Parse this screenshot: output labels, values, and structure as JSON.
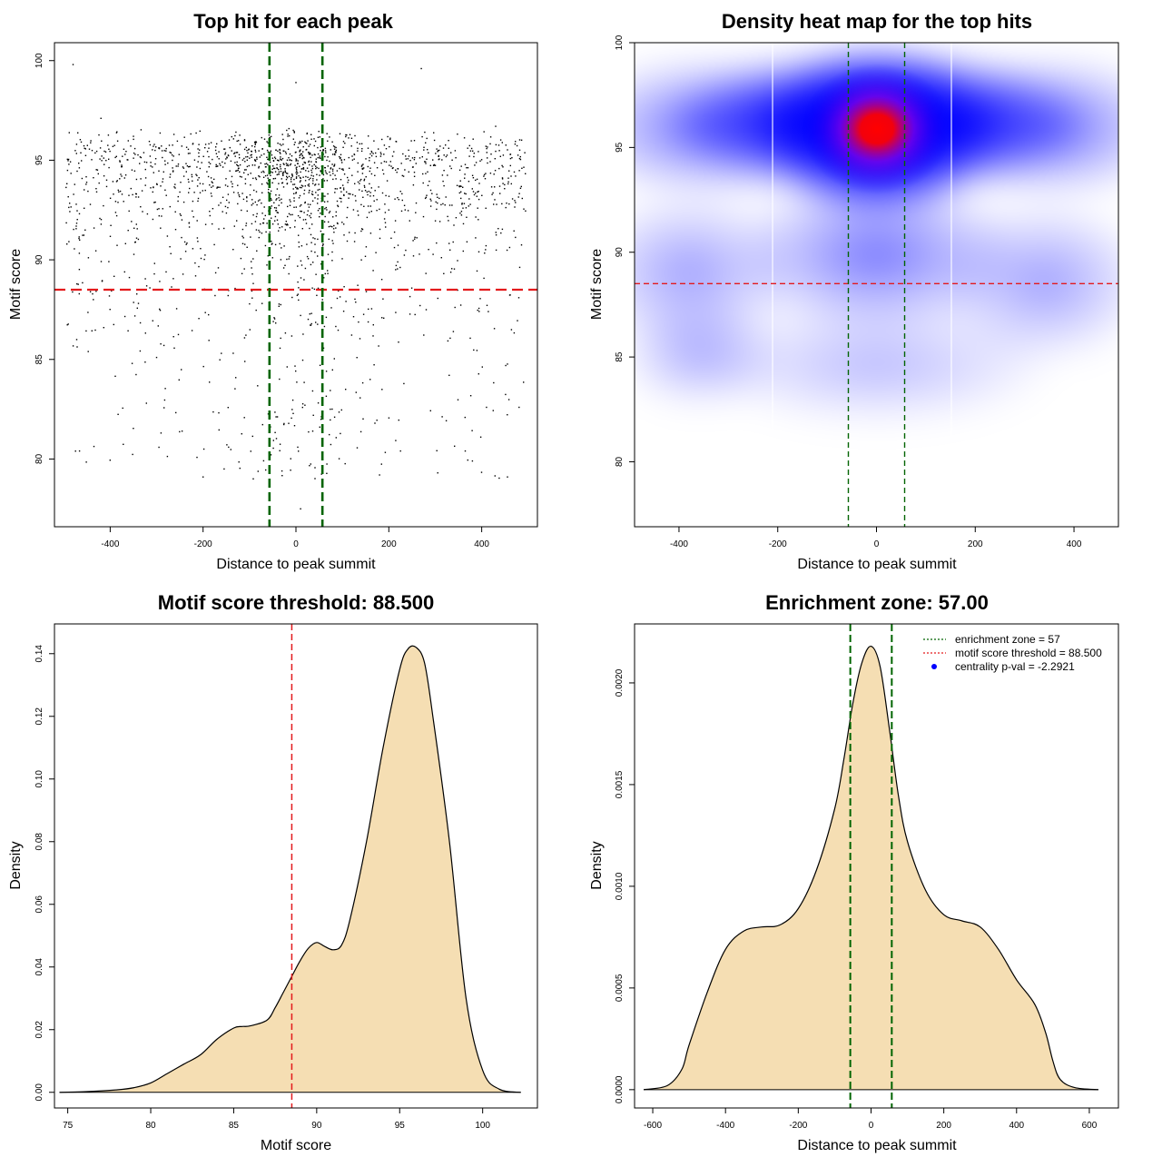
{
  "chart_data": [
    {
      "type": "scatter",
      "title": "Top hit for each peak",
      "xlabel": "Distance to peak summit",
      "ylabel": "Motif score",
      "xlim": [
        -520,
        520
      ],
      "ylim": [
        76.6,
        100.9
      ],
      "xticks": [
        -400,
        -200,
        0,
        200,
        400
      ],
      "yticks": [
        80,
        85,
        90,
        95,
        100
      ],
      "hline": {
        "y": 88.5,
        "color": "#e31a1c"
      },
      "vlines": {
        "x": [
          -57,
          57
        ],
        "color": "#006400"
      },
      "point_count": 2000,
      "point_color": "#000000",
      "sampled_points": [
        [
          -480,
          99.8
        ],
        [
          -420,
          97.1
        ],
        [
          -350,
          96.2
        ],
        [
          -300,
          85.1
        ],
        [
          -250,
          93.4
        ],
        [
          -200,
          79.1
        ],
        [
          -120,
          95.8
        ],
        [
          -60,
          90.2
        ],
        [
          -20,
          96.5
        ],
        [
          0,
          98.9
        ],
        [
          10,
          77.5
        ],
        [
          35,
          94.7
        ],
        [
          60,
          89.1
        ],
        [
          120,
          96.1
        ],
        [
          180,
          79.2
        ],
        [
          200,
          92.5
        ],
        [
          270,
          99.6
        ],
        [
          330,
          84.2
        ],
        [
          380,
          79.9
        ],
        [
          430,
          96.7
        ],
        [
          480,
          88.1
        ]
      ]
    },
    {
      "type": "heatmap",
      "title": "Density heat map for the top hits",
      "xlabel": "Distance to peak summit",
      "ylabel": "Motif score",
      "xlim": [
        -490,
        490
      ],
      "ylim": [
        76.9,
        100
      ],
      "xticks": [
        -400,
        -200,
        0,
        200,
        400
      ],
      "yticks": [
        80,
        85,
        90,
        95,
        100
      ],
      "hline": {
        "y": 88.5,
        "color": "#e31a1c"
      },
      "vlines": {
        "x": [
          -57,
          57
        ],
        "color": "#006400"
      },
      "peak": {
        "x": 0,
        "y": 96
      },
      "colors": [
        "#ffffff",
        "#0000ff",
        "#ff0000"
      ]
    },
    {
      "type": "area",
      "title": "Motif score threshold: 88.500",
      "xlabel": "Motif score",
      "ylabel": "Density",
      "xlim": [
        74.2,
        103.3
      ],
      "ylim": [
        -0.005,
        0.1495
      ],
      "xticks": [
        75,
        80,
        85,
        90,
        95,
        100
      ],
      "yticks": [
        0.0,
        0.02,
        0.04,
        0.06,
        0.08,
        0.1,
        0.12,
        0.14
      ],
      "ytick_labels": [
        "0.00",
        "0.02",
        "0.04",
        "0.06",
        "0.08",
        "0.10",
        "0.12",
        "0.14"
      ],
      "vline": {
        "x": 88.5,
        "color": "#e31a1c"
      },
      "fill_color": "#f5deb3",
      "x": [
        74.5,
        76,
        78,
        79,
        80,
        81,
        82,
        83,
        84,
        85,
        85.5,
        86,
        87,
        87.5,
        88,
        88.5,
        89,
        89.5,
        90,
        90.5,
        91,
        91.5,
        92,
        93,
        94,
        95,
        95.5,
        96,
        96.5,
        97,
        98,
        99,
        100,
        101,
        102.3
      ],
      "y": [
        0.0,
        0.0002,
        0.0008,
        0.0015,
        0.003,
        0.006,
        0.009,
        0.012,
        0.017,
        0.0205,
        0.021,
        0.0212,
        0.023,
        0.027,
        0.032,
        0.037,
        0.042,
        0.046,
        0.0478,
        0.0465,
        0.0455,
        0.047,
        0.055,
        0.08,
        0.11,
        0.135,
        0.1415,
        0.142,
        0.137,
        0.12,
        0.08,
        0.03,
        0.007,
        0.001,
        0.0
      ]
    },
    {
      "type": "area",
      "title": "Enrichment zone: 57.00",
      "xlabel": "Distance to peak summit",
      "ylabel": "Density",
      "xlim": [
        -650,
        680
      ],
      "ylim": [
        -9e-05,
        0.00229
      ],
      "xticks": [
        -600,
        -400,
        -200,
        0,
        200,
        400,
        600
      ],
      "yticks": [
        0.0,
        0.0005,
        0.001,
        0.0015,
        0.002
      ],
      "ytick_labels": [
        "0.0000",
        "0.0005",
        "0.0010",
        "0.0015",
        "0.0020"
      ],
      "vlines": {
        "x": [
          -57,
          57
        ],
        "color": "#006400"
      },
      "fill_color": "#f5deb3",
      "x": [
        -625,
        -560,
        -520,
        -500,
        -450,
        -400,
        -350,
        -300,
        -250,
        -200,
        -150,
        -100,
        -75,
        -50,
        -25,
        0,
        25,
        50,
        75,
        100,
        150,
        200,
        250,
        300,
        350,
        400,
        450,
        480,
        500,
        520,
        560,
        625
      ],
      "y": [
        0.0,
        2e-05,
        0.0001,
        0.00022,
        0.00048,
        0.00069,
        0.00078,
        0.0008,
        0.00081,
        0.00089,
        0.00108,
        0.00138,
        0.00162,
        0.0019,
        0.0021,
        0.00218,
        0.00208,
        0.00178,
        0.00145,
        0.00122,
        0.00098,
        0.00086,
        0.00083,
        0.0008,
        0.00069,
        0.00054,
        0.00042,
        0.00028,
        0.00014,
        5e-05,
        1e-05,
        0.0
      ],
      "legend": {
        "position": "top-right",
        "entries": [
          {
            "label": "enrichment zone = 57",
            "color": "#006400",
            "symbol": "dotted-line"
          },
          {
            "label": "motif score threshold = 88.500",
            "color": "#e31a1c",
            "symbol": "dotted-line"
          },
          {
            "label": "centrality p-val = -2.2921",
            "color": "#0000ff",
            "symbol": "dot"
          }
        ]
      }
    }
  ]
}
